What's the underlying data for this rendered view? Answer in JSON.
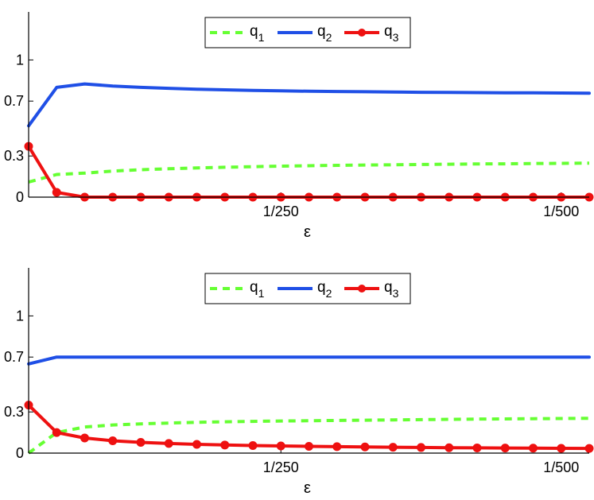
{
  "chart_data": [
    {
      "type": "line",
      "xlabel": "ε",
      "ylim": [
        0,
        1.35
      ],
      "yticks": [
        0,
        0.3,
        0.7,
        1
      ],
      "ytick_labels": [
        "0",
        "0.3",
        "0.7",
        "1"
      ],
      "xticks": [
        250,
        500
      ],
      "xtick_labels": [
        "1/250",
        "1/500"
      ],
      "xlim": [
        25,
        525
      ],
      "grid": false,
      "legend_position": "top-center",
      "x": [
        25,
        50,
        75,
        100,
        125,
        150,
        175,
        200,
        225,
        250,
        275,
        300,
        325,
        350,
        375,
        400,
        425,
        450,
        475,
        500,
        525
      ],
      "series": [
        {
          "name": "q",
          "subscript": "1",
          "color": "#66ff33",
          "style": "dashed",
          "values": [
            0.11,
            0.165,
            0.175,
            0.19,
            0.2,
            0.207,
            0.213,
            0.218,
            0.222,
            0.226,
            0.229,
            0.232,
            0.234,
            0.236,
            0.238,
            0.24,
            0.242,
            0.243,
            0.245,
            0.246,
            0.248
          ]
        },
        {
          "name": "q",
          "subscript": "2",
          "color": "#1f4fe6",
          "style": "solid",
          "values": [
            0.52,
            0.8,
            0.825,
            0.81,
            0.8,
            0.793,
            0.787,
            0.782,
            0.778,
            0.775,
            0.772,
            0.77,
            0.768,
            0.766,
            0.764,
            0.763,
            0.762,
            0.761,
            0.76,
            0.759,
            0.758
          ]
        },
        {
          "name": "q",
          "subscript": "3",
          "color": "#ee1111",
          "style": "solid-markers",
          "values": [
            0.37,
            0.035,
            0.0,
            0.0,
            0.0,
            0.0,
            0.0,
            0.0,
            0.0,
            0.0,
            0.0,
            0.0,
            0.0,
            0.0,
            0.0,
            0.0,
            0.0,
            0.0,
            0.0,
            0.0,
            0.0
          ]
        }
      ]
    },
    {
      "type": "line",
      "xlabel": "ε",
      "ylim": [
        0,
        1.35
      ],
      "yticks": [
        0,
        0.3,
        0.7,
        1
      ],
      "ytick_labels": [
        "0",
        "0.3",
        "0.7",
        "1"
      ],
      "xticks": [
        250,
        500
      ],
      "xtick_labels": [
        "1/250",
        "1/500"
      ],
      "xlim": [
        25,
        525
      ],
      "grid": false,
      "legend_position": "top-center",
      "x": [
        25,
        50,
        75,
        100,
        125,
        150,
        175,
        200,
        225,
        250,
        275,
        300,
        325,
        350,
        375,
        400,
        425,
        450,
        475,
        500,
        525
      ],
      "series": [
        {
          "name": "q",
          "subscript": "1",
          "color": "#66ff33",
          "style": "dashed",
          "values": [
            0.0,
            0.15,
            0.19,
            0.205,
            0.213,
            0.219,
            0.224,
            0.228,
            0.231,
            0.234,
            0.236,
            0.238,
            0.24,
            0.242,
            0.244,
            0.246,
            0.248,
            0.249,
            0.251,
            0.252,
            0.254
          ]
        },
        {
          "name": "q",
          "subscript": "2",
          "color": "#1f4fe6",
          "style": "solid",
          "values": [
            0.65,
            0.7,
            0.7,
            0.7,
            0.7,
            0.7,
            0.7,
            0.7,
            0.7,
            0.7,
            0.7,
            0.7,
            0.7,
            0.7,
            0.7,
            0.7,
            0.7,
            0.7,
            0.7,
            0.7,
            0.7
          ]
        },
        {
          "name": "q",
          "subscript": "3",
          "color": "#ee1111",
          "style": "solid-markers",
          "values": [
            0.35,
            0.15,
            0.11,
            0.09,
            0.078,
            0.07,
            0.064,
            0.059,
            0.055,
            0.052,
            0.049,
            0.047,
            0.045,
            0.043,
            0.041,
            0.039,
            0.038,
            0.037,
            0.036,
            0.035,
            0.034
          ]
        }
      ]
    }
  ]
}
